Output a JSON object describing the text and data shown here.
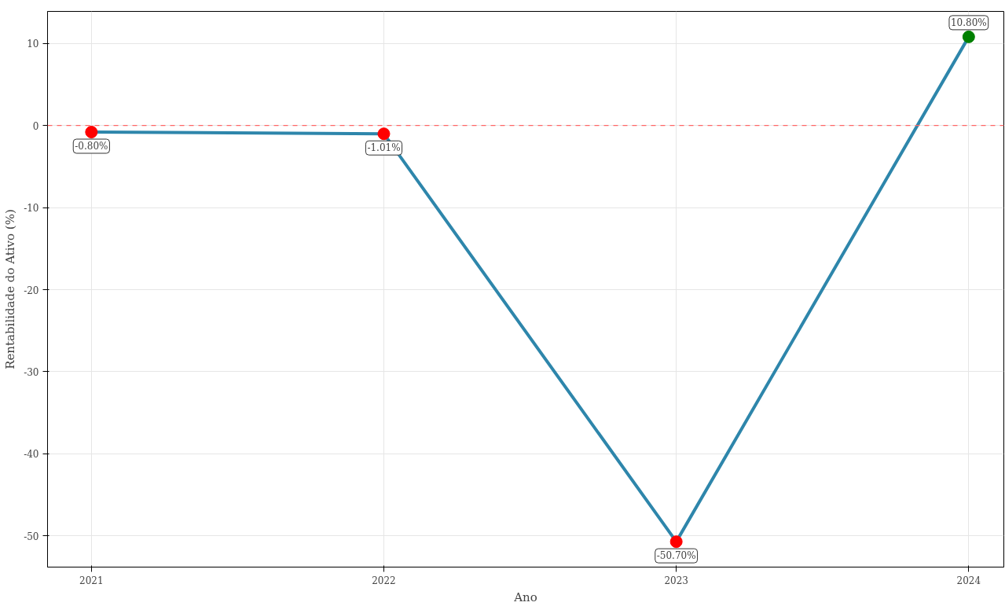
{
  "chart_data": {
    "type": "line",
    "xlabel": "Ano",
    "ylabel": "Rentabilidade do Ativo (%)",
    "x": [
      2021,
      2022,
      2023,
      2024
    ],
    "values": [
      -0.8,
      -1.01,
      -50.7,
      10.8
    ],
    "value_labels": [
      "-0.80%",
      "-1.01%",
      "-50.70%",
      "10.80%"
    ],
    "color": "#2e86ab",
    "colors": [
      "#ff0000",
      "#ff0000",
      "#ff0000",
      "#008000"
    ],
    "xlim": [
      2020.85,
      2024.12
    ],
    "xticks": [
      2021,
      2022,
      2023,
      2024
    ],
    "ylim": [
      -53.8,
      13.9
    ],
    "yticks": [
      -50,
      -40,
      -30,
      -20,
      -10,
      0,
      10
    ],
    "ref_lines": [
      {
        "axis": "y",
        "value": 0,
        "color": "#ff6666",
        "line_style": "dashed"
      }
    ],
    "grid": true,
    "marker": "circle",
    "line_style": "solid"
  }
}
